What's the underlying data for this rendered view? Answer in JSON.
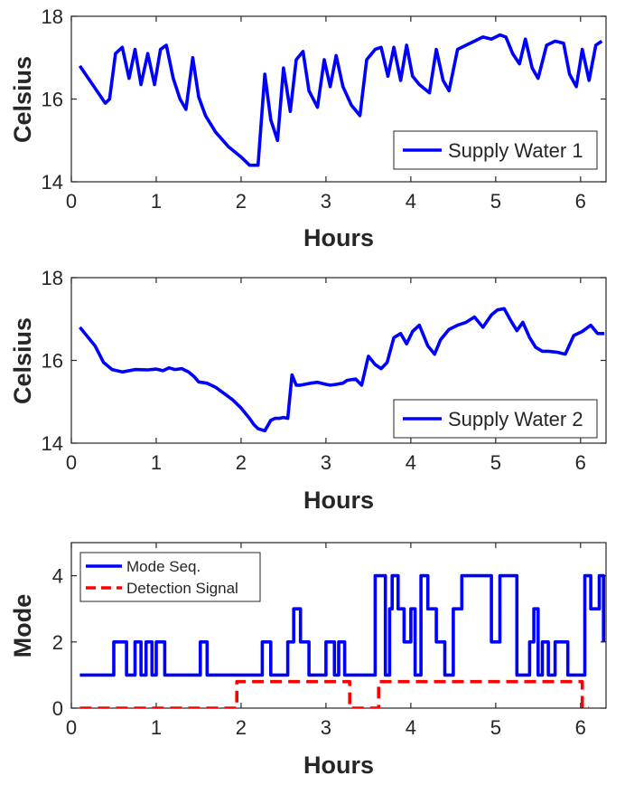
{
  "figure": {
    "colors": {
      "series_main": "#0000ff",
      "series_detect": "#ff0000",
      "axes": "#262626"
    }
  },
  "chart_data": [
    {
      "type": "line",
      "title": "",
      "xlabel": "Hours",
      "ylabel": "Celsius",
      "xlim": [
        0,
        6.3
      ],
      "ylim": [
        14,
        18
      ],
      "xticks": [
        0,
        1,
        2,
        3,
        4,
        5,
        6
      ],
      "yticks": [
        14,
        16,
        18
      ],
      "legend_position": "bottom-right",
      "series": [
        {
          "name": "Supply Water 1",
          "color": "#0000ff",
          "style": "solid",
          "x": [
            0.1,
            0.2,
            0.3,
            0.4,
            0.45,
            0.52,
            0.6,
            0.68,
            0.75,
            0.82,
            0.9,
            0.98,
            1.05,
            1.12,
            1.2,
            1.28,
            1.35,
            1.43,
            1.5,
            1.58,
            1.7,
            1.85,
            2.0,
            2.1,
            2.2,
            2.28,
            2.35,
            2.43,
            2.5,
            2.58,
            2.65,
            2.73,
            2.8,
            2.9,
            2.98,
            3.05,
            3.12,
            3.2,
            3.3,
            3.4,
            3.48,
            3.58,
            3.65,
            3.73,
            3.8,
            3.88,
            3.95,
            4.02,
            4.1,
            4.22,
            4.3,
            4.38,
            4.45,
            4.55,
            4.65,
            4.75,
            4.85,
            4.95,
            5.05,
            5.12,
            5.2,
            5.28,
            5.35,
            5.43,
            5.5,
            5.6,
            5.7,
            5.8,
            5.87,
            5.95,
            6.02,
            6.1,
            6.18,
            6.25
          ],
          "values": [
            16.8,
            16.5,
            16.2,
            15.9,
            16.0,
            17.1,
            17.25,
            16.5,
            17.2,
            16.35,
            17.1,
            16.35,
            17.2,
            17.3,
            16.5,
            16.0,
            15.75,
            17.0,
            16.05,
            15.6,
            15.2,
            14.85,
            14.6,
            14.4,
            14.4,
            16.6,
            15.5,
            15.0,
            16.75,
            15.7,
            16.95,
            17.15,
            16.2,
            15.8,
            16.95,
            16.3,
            17.05,
            16.3,
            15.85,
            15.6,
            16.95,
            17.2,
            17.25,
            16.55,
            17.25,
            16.45,
            17.3,
            16.55,
            16.35,
            16.15,
            17.2,
            16.45,
            16.2,
            17.2,
            17.3,
            17.4,
            17.5,
            17.45,
            17.55,
            17.5,
            17.1,
            16.85,
            17.45,
            16.75,
            16.5,
            17.3,
            17.4,
            17.35,
            16.6,
            16.3,
            17.2,
            16.45,
            17.3,
            17.4
          ]
        }
      ]
    },
    {
      "type": "line",
      "title": "",
      "xlabel": "Hours",
      "ylabel": "Celsius",
      "xlim": [
        0,
        6.3
      ],
      "ylim": [
        14,
        18
      ],
      "xticks": [
        0,
        1,
        2,
        3,
        4,
        5,
        6
      ],
      "yticks": [
        14,
        16,
        18
      ],
      "legend_position": "bottom-right",
      "series": [
        {
          "name": "Supply Water 2",
          "color": "#0000ff",
          "style": "solid",
          "x": [
            0.1,
            0.18,
            0.28,
            0.38,
            0.48,
            0.6,
            0.75,
            0.9,
            1.0,
            1.08,
            1.15,
            1.22,
            1.3,
            1.38,
            1.45,
            1.5,
            1.6,
            1.7,
            1.8,
            1.9,
            2.0,
            2.1,
            2.15,
            2.2,
            2.28,
            2.35,
            2.4,
            2.45,
            2.5,
            2.55,
            2.6,
            2.65,
            2.7,
            2.75,
            2.82,
            2.9,
            3.0,
            3.05,
            3.12,
            3.2,
            3.25,
            3.35,
            3.42,
            3.5,
            3.58,
            3.65,
            3.72,
            3.8,
            3.88,
            3.95,
            4.02,
            4.1,
            4.2,
            4.28,
            4.35,
            4.45,
            4.55,
            4.65,
            4.75,
            4.85,
            4.95,
            5.02,
            5.1,
            5.18,
            5.25,
            5.32,
            5.4,
            5.47,
            5.55,
            5.62,
            5.72,
            5.82,
            5.92,
            6.02,
            6.12,
            6.2,
            6.28
          ],
          "values": [
            16.8,
            16.6,
            16.35,
            15.95,
            15.78,
            15.72,
            15.78,
            15.77,
            15.79,
            15.75,
            15.82,
            15.78,
            15.8,
            15.72,
            15.6,
            15.48,
            15.45,
            15.35,
            15.2,
            15.05,
            14.85,
            14.6,
            14.45,
            14.35,
            14.3,
            14.55,
            14.6,
            14.6,
            14.62,
            14.6,
            15.65,
            15.4,
            15.4,
            15.42,
            15.45,
            15.47,
            15.42,
            15.4,
            15.42,
            15.45,
            15.52,
            15.55,
            15.4,
            16.1,
            15.9,
            15.8,
            15.95,
            16.55,
            16.65,
            16.4,
            16.7,
            16.85,
            16.35,
            16.15,
            16.5,
            16.75,
            16.85,
            16.92,
            17.05,
            16.8,
            17.1,
            17.22,
            17.25,
            16.95,
            16.72,
            16.92,
            16.55,
            16.32,
            16.22,
            16.22,
            16.2,
            16.15,
            16.6,
            16.7,
            16.85,
            16.65,
            16.65
          ]
        }
      ]
    },
    {
      "type": "line",
      "title": "",
      "xlabel": "Hours",
      "ylabel": "Mode",
      "xlim": [
        0,
        6.3
      ],
      "ylim": [
        0,
        5
      ],
      "xticks": [
        0,
        1,
        2,
        3,
        4,
        5,
        6
      ],
      "yticks": [
        0,
        2,
        4
      ],
      "legend_position": "top-left",
      "series": [
        {
          "name": "Mode Seq.",
          "color": "#0000ff",
          "style": "solid-step",
          "x": [
            0.1,
            0.5,
            0.65,
            0.75,
            0.82,
            0.88,
            0.95,
            1.0,
            1.1,
            1.22,
            1.32,
            1.52,
            1.6,
            1.95,
            2.25,
            2.35,
            2.45,
            2.55,
            2.62,
            2.7,
            2.8,
            2.92,
            3.0,
            3.1,
            3.15,
            3.22,
            3.28,
            3.48,
            3.58,
            3.7,
            3.75,
            3.78,
            3.85,
            3.92,
            4.0,
            4.05,
            4.12,
            4.2,
            4.3,
            4.4,
            4.5,
            4.6,
            4.7,
            4.78,
            4.88,
            4.95,
            5.05,
            5.12,
            5.25,
            5.4,
            5.45,
            5.5,
            5.55,
            5.62,
            5.7,
            5.85,
            5.98,
            6.05,
            6.12,
            6.22,
            6.27
          ],
          "values": [
            1,
            2,
            1,
            2,
            1,
            2,
            1,
            2,
            1,
            1,
            1,
            2,
            1,
            1,
            2,
            1,
            1,
            2,
            3,
            2,
            1,
            1,
            2,
            1,
            2,
            1,
            1,
            1,
            4,
            1,
            3,
            4,
            3,
            2,
            3,
            1,
            4,
            3,
            2,
            1,
            3,
            4,
            4,
            4,
            4,
            2,
            4,
            4,
            1,
            2,
            3,
            1,
            2,
            1,
            2,
            1,
            1,
            4,
            3,
            4,
            2
          ]
        },
        {
          "name": "Detection Signal",
          "color": "#ff0000",
          "style": "dashed-step",
          "x": [
            0.1,
            1.95,
            3.28,
            3.62,
            6.02,
            6.1
          ],
          "values": [
            0,
            0.8,
            0,
            0.8,
            0,
            0
          ]
        }
      ]
    }
  ]
}
